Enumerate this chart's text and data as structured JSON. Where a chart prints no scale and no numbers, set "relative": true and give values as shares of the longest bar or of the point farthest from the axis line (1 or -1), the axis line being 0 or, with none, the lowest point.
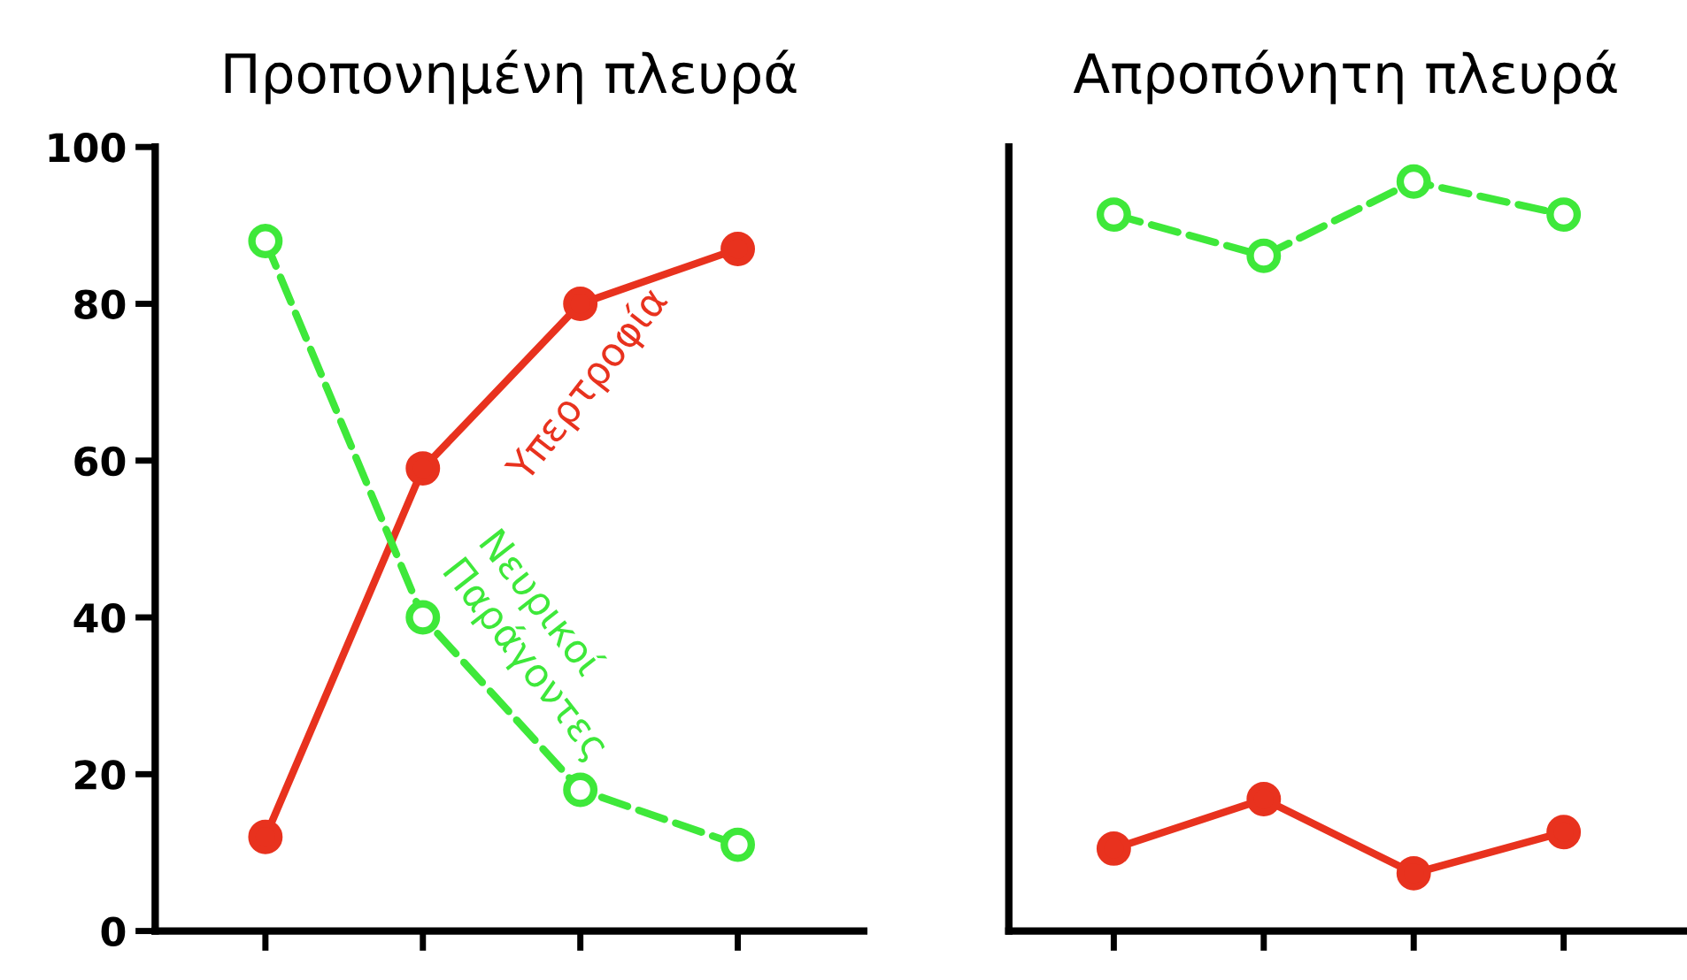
{
  "chart_data": [
    {
      "type": "line",
      "title": "Προπονημένη πλευρά",
      "categories": [
        null,
        null,
        null,
        null
      ],
      "ylim": [
        0,
        100
      ],
      "yticks": [
        0,
        20,
        40,
        60,
        80,
        100
      ],
      "tick_labels": "y",
      "grid": false,
      "legend": false,
      "series": [
        {
          "name": "Υπερτροφία",
          "color": "#e8321e",
          "values": [
            12,
            59,
            80,
            87
          ],
          "marker": "circle",
          "line_style": "solid"
        },
        {
          "name": "Νευρικοί\nΠαράγοντες",
          "color": "#3ee83a",
          "values": [
            88,
            40,
            18,
            11
          ],
          "marker": "circle",
          "line_style": "dashed"
        }
      ]
    },
    {
      "type": "line",
      "title": "Απροπόνητη πλευρά",
      "categories": [
        null,
        null,
        null,
        null
      ],
      "relative": true,
      "tick_labels": false,
      "grid": false,
      "legend": false,
      "series": [
        {
          "color": "#3ee83a",
          "values": [
            0.956,
            0.901,
            1,
            0.956
          ],
          "marker": "circle",
          "line_style": "dashed"
        },
        {
          "color": "#e8321e",
          "values": [
            0.11,
            0.176,
            0.077,
            0.132
          ],
          "marker": "circle",
          "line_style": "solid"
        }
      ]
    }
  ]
}
